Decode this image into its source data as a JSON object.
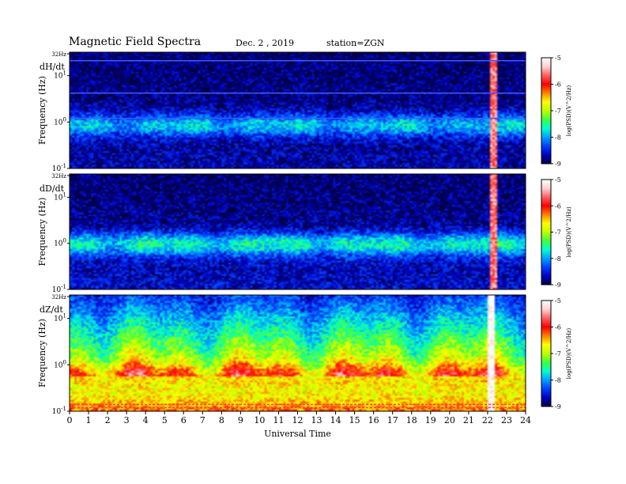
{
  "header": {
    "title": "Magnetic  Field  Spectra",
    "date": "Dec. 2  , 2019",
    "station": "station=ZGN"
  },
  "chart_data": {
    "type": "heatmap",
    "x_label": "Universal  Time",
    "x_range": [
      0,
      24
    ],
    "x_ticks": [
      "0",
      "1",
      "2",
      "3",
      "4",
      "5",
      "6",
      "7",
      "8",
      "9",
      "10",
      "11",
      "12",
      "13",
      "14",
      "15",
      "16",
      "17",
      "18",
      "19",
      "20",
      "21",
      "22",
      "23",
      "24"
    ],
    "y_label": "Frequency  (Hz)",
    "y_scale": "log",
    "y_range_hz": [
      0.1,
      32
    ],
    "y_tick_labels": [
      {
        "label": "32Hz",
        "value": 32,
        "position": "top"
      },
      {
        "label": "10",
        "sup": "1",
        "value": 10
      },
      {
        "label": "10",
        "sup": "0",
        "value": 1
      },
      {
        "label": "10",
        "sup": "-1",
        "value": 0.1
      }
    ],
    "colorbar": {
      "label": "log(PSD)(V^2/Hz)",
      "ticks": [
        "-5",
        "-6",
        "-7",
        "-8",
        "-9"
      ],
      "range": [
        -9,
        -5
      ],
      "colors": [
        "#000040",
        "#0000c0",
        "#0040ff",
        "#00a0ff",
        "#00ffd0",
        "#40ff40",
        "#c0ff00",
        "#ffff00",
        "#ff8000",
        "#ff0000",
        "#ff6060",
        "#ffd0d0",
        "#ffffff"
      ]
    },
    "panels": [
      {
        "component": "dH/dt",
        "band_hz": 0.9,
        "band_level": -7.6,
        "floor_level": -8.7,
        "top_level": -8.9,
        "lines_hz": [
          21,
          4.2,
          1.2
        ],
        "disturbance_utc": [
          22.1,
          22.4
        ],
        "disturbance_level": -5.6
      },
      {
        "component": "dD/dt",
        "band_hz": 1.0,
        "band_level": -7.3,
        "floor_level": -8.6,
        "top_level": -8.9,
        "lines_hz": [],
        "disturbance_utc": [
          22.1,
          22.4
        ],
        "disturbance_level": -5.6
      },
      {
        "component": "dZ/dt",
        "band_hz": 0.6,
        "band_level": -5.6,
        "floor_level": -6.2,
        "top_level": -8.6,
        "lines_hz": [
          0.14,
          0.12
        ],
        "disturbance_utc": [
          21.9,
          22.3
        ],
        "disturbance_level": -5.0
      }
    ]
  }
}
